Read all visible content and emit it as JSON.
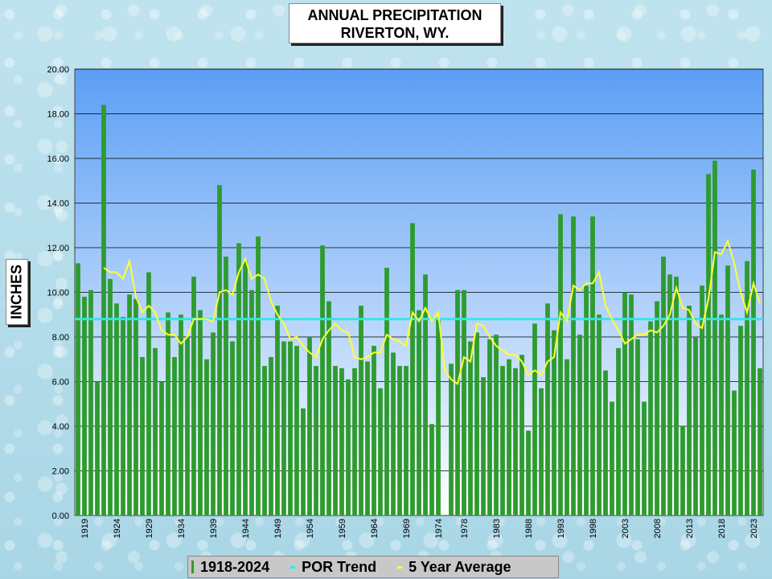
{
  "chart_data": {
    "type": "bar",
    "title_line1": "ANNUAL  PRECIPITATION",
    "title_line2": "RIVERTON,  WY.",
    "ylabel": "INCHES",
    "xlabel": "",
    "ylim": [
      0,
      20
    ],
    "yticks": [
      "0.00",
      "2.00",
      "4.00",
      "6.00",
      "8.00",
      "10.00",
      "12.00",
      "14.00",
      "16.00",
      "18.00",
      "20.00"
    ],
    "xticks": [
      1919,
      1924,
      1929,
      1934,
      1939,
      1944,
      1949,
      1954,
      1959,
      1964,
      1969,
      1974,
      1978,
      1983,
      1988,
      1993,
      1998,
      2003,
      2008,
      2013,
      2018,
      2023
    ],
    "grid": true,
    "years": [
      1918,
      1919,
      1920,
      1921,
      1922,
      1923,
      1924,
      1925,
      1926,
      1927,
      1928,
      1929,
      1930,
      1931,
      1932,
      1933,
      1934,
      1935,
      1936,
      1937,
      1938,
      1939,
      1940,
      1941,
      1942,
      1943,
      1944,
      1945,
      1946,
      1947,
      1948,
      1949,
      1950,
      1951,
      1952,
      1953,
      1954,
      1955,
      1956,
      1957,
      1958,
      1959,
      1960,
      1961,
      1962,
      1963,
      1964,
      1965,
      1966,
      1967,
      1968,
      1969,
      1970,
      1971,
      1972,
      1973,
      1974,
      1975,
      1976,
      1977,
      1978,
      1979,
      1980,
      1981,
      1982,
      1983,
      1984,
      1985,
      1986,
      1987,
      1988,
      1989,
      1990,
      1991,
      1992,
      1993,
      1994,
      1995,
      1996,
      1997,
      1998,
      1999,
      2000,
      2001,
      2002,
      2003,
      2004,
      2005,
      2006,
      2007,
      2008,
      2009,
      2010,
      2011,
      2012,
      2013,
      2014,
      2015,
      2016,
      2017,
      2018,
      2019,
      2020,
      2021,
      2022,
      2023,
      2024
    ],
    "series": [
      {
        "name": "1918-2024",
        "color": "#2e9b2e",
        "values": [
          11.3,
          9.8,
          10.1,
          6.0,
          18.4,
          10.6,
          9.5,
          8.9,
          9.9,
          9.7,
          7.1,
          10.9,
          7.5,
          6.0,
          9.1,
          7.1,
          9.0,
          8.0,
          10.7,
          9.2,
          7.0,
          8.2,
          14.8,
          11.6,
          7.8,
          12.2,
          11.4,
          10.1,
          12.5,
          6.7,
          7.1,
          9.4,
          7.8,
          7.8,
          7.6,
          4.8,
          8.0,
          6.7,
          12.1,
          9.6,
          6.7,
          6.6,
          6.1,
          6.6,
          9.4,
          6.9,
          7.6,
          5.7,
          11.1,
          7.3,
          6.7,
          6.7,
          13.1,
          9.2,
          10.8,
          4.1,
          8.8,
          null,
          6.8,
          10.1,
          10.1,
          7.8,
          8.2,
          6.2,
          7.9,
          8.1,
          6.7,
          7.0,
          6.6,
          7.2,
          3.8,
          8.6,
          5.7,
          9.5,
          8.3,
          13.5,
          7.0,
          13.4,
          8.1,
          10.3,
          13.4,
          9.0,
          6.5,
          5.1,
          7.5,
          10.0,
          9.9,
          7.9,
          5.1,
          8.7,
          9.6,
          11.6,
          10.8,
          10.7,
          4.0,
          9.4,
          8.0,
          10.3,
          15.3,
          15.9,
          9.0,
          11.2,
          5.6,
          8.5,
          11.4,
          15.5,
          6.6
        ]
      },
      {
        "name": "POR Trend",
        "color": "#33e6e6",
        "value": 8.8
      },
      {
        "name": "5 Year Average",
        "color": "#ffff33",
        "start_year": 1922,
        "values": [
          11.1,
          10.9,
          10.9,
          10.6,
          11.4,
          9.8,
          9.1,
          9.4,
          9.1,
          8.3,
          8.1,
          8.1,
          7.7,
          8.0,
          8.8,
          8.8,
          8.8,
          8.7,
          10.0,
          10.1,
          9.9,
          10.9,
          11.5,
          10.6,
          10.8,
          10.6,
          9.6,
          9.0,
          8.6,
          7.9,
          8.0,
          7.6,
          7.3,
          7.1,
          7.9,
          8.3,
          8.6,
          8.3,
          8.2,
          7.1,
          7.0,
          7.1,
          7.3,
          7.3,
          8.1,
          7.9,
          7.8,
          7.6,
          9.1,
          8.7,
          9.3,
          8.7,
          9.1,
          6.5,
          6.1,
          5.9,
          7.1,
          6.9,
          8.6,
          8.5,
          8.0,
          7.6,
          7.4,
          7.2,
          7.2,
          6.9,
          6.3,
          6.5,
          6.3,
          6.9,
          7.1,
          9.1,
          8.7,
          10.3,
          10.1,
          10.4,
          10.4,
          10.9,
          9.4,
          8.8,
          8.3,
          7.7,
          7.9,
          8.1,
          8.1,
          8.3,
          8.2,
          8.5,
          9.0,
          10.2,
          9.3,
          9.2,
          8.6,
          8.4,
          9.7,
          11.8,
          11.7,
          12.3,
          11.3,
          10.0,
          9.1,
          10.4,
          9.5
        ]
      }
    ],
    "legend_placement": "bottom",
    "colors": {
      "plot_top": "#5b9ef5",
      "plot_bottom": "#ffffff",
      "gridline": "#000000"
    }
  },
  "legend": {
    "item1": "1918-2024",
    "item2": "POR Trend",
    "item3": "5 Year Average"
  }
}
